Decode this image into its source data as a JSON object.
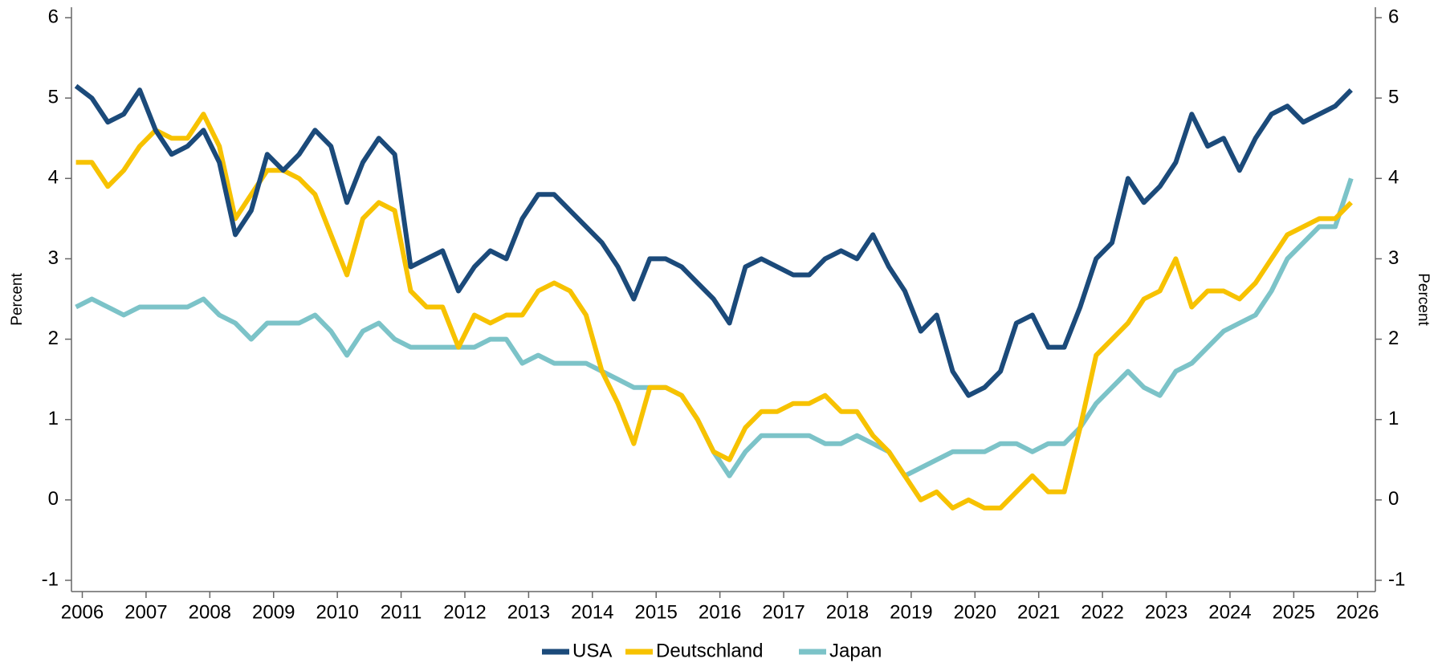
{
  "chart_data": {
    "type": "line",
    "y_label": "Percent",
    "y2_label": "Percent",
    "x": [
      2006.4,
      2006.65,
      2006.9,
      2007.15,
      2007.4,
      2007.65,
      2007.9,
      2008.15,
      2008.4,
      2008.65,
      2008.9,
      2009.15,
      2009.4,
      2009.65,
      2009.9,
      2010.15,
      2010.4,
      2010.65,
      2010.9,
      2011.15,
      2011.4,
      2011.65,
      2011.9,
      2012.15,
      2012.4,
      2012.65,
      2012.9,
      2013.15,
      2013.4,
      2013.65,
      2013.9,
      2014.15,
      2014.4,
      2014.65,
      2014.9,
      2015.15,
      2015.4,
      2015.65,
      2015.9,
      2016.15,
      2016.4,
      2016.65,
      2016.9,
      2017.15,
      2017.4,
      2017.65,
      2017.9,
      2018.15,
      2018.4,
      2018.65,
      2018.9,
      2019.15,
      2019.4,
      2019.65,
      2019.9,
      2020.15,
      2020.4,
      2020.65,
      2020.9,
      2021.15,
      2021.4,
      2021.65,
      2021.9,
      2022.15,
      2022.4,
      2022.65,
      2022.9,
      2023.15,
      2023.4,
      2023.65,
      2023.9,
      2024.15,
      2024.4,
      2024.65,
      2024.9,
      2025.15,
      2025.4,
      2025.65,
      2025.9,
      2026.15,
      2026.4
    ],
    "series": [
      {
        "name": "USA",
        "color": "#1b4a7a",
        "values": [
          5.15,
          5.0,
          4.7,
          4.8,
          5.1,
          4.6,
          4.3,
          4.4,
          4.6,
          4.2,
          3.3,
          3.6,
          4.3,
          4.1,
          4.3,
          4.6,
          4.4,
          3.7,
          4.2,
          4.5,
          4.3,
          2.9,
          3.0,
          3.1,
          2.6,
          2.9,
          3.1,
          3.0,
          3.5,
          3.8,
          3.8,
          3.6,
          3.4,
          3.2,
          2.9,
          2.5,
          3.0,
          3.0,
          2.9,
          2.7,
          2.5,
          2.2,
          2.9,
          3.0,
          2.9,
          2.8,
          2.8,
          3.0,
          3.1,
          3.0,
          3.3,
          2.9,
          2.6,
          2.1,
          2.3,
          1.6,
          1.3,
          1.4,
          1.6,
          2.2,
          2.3,
          1.9,
          1.9,
          2.4,
          3.0,
          3.2,
          4.0,
          3.7,
          3.9,
          4.2,
          4.8,
          4.4,
          4.5,
          4.1,
          4.5,
          4.8,
          4.9,
          4.7,
          4.8,
          4.9,
          5.1
        ]
      },
      {
        "name": "Deutschland",
        "color": "#f7c200",
        "values": [
          4.2,
          4.2,
          3.9,
          4.1,
          4.4,
          4.6,
          4.5,
          4.5,
          4.8,
          4.4,
          3.5,
          3.8,
          4.1,
          4.1,
          4.0,
          3.8,
          3.3,
          2.8,
          3.5,
          3.7,
          3.6,
          2.6,
          2.4,
          2.4,
          1.9,
          2.3,
          2.2,
          2.3,
          2.3,
          2.6,
          2.7,
          2.6,
          2.3,
          1.6,
          1.2,
          0.7,
          1.4,
          1.4,
          1.3,
          1.0,
          0.6,
          0.5,
          0.9,
          1.1,
          1.1,
          1.2,
          1.2,
          1.3,
          1.1,
          1.1,
          0.8,
          0.6,
          0.3,
          0.0,
          0.1,
          -0.1,
          0.0,
          -0.1,
          -0.1,
          0.1,
          0.3,
          0.1,
          0.1,
          0.9,
          1.8,
          2.0,
          2.2,
          2.5,
          2.6,
          3.0,
          2.4,
          2.6,
          2.6,
          2.5,
          2.7,
          3.0,
          3.3,
          3.4,
          3.5,
          3.5,
          3.7
        ]
      },
      {
        "name": "Japan",
        "color": "#7cc3c8",
        "values": [
          2.4,
          2.5,
          2.4,
          2.3,
          2.4,
          2.4,
          2.4,
          2.4,
          2.5,
          2.3,
          2.2,
          2.0,
          2.2,
          2.2,
          2.2,
          2.3,
          2.1,
          1.8,
          2.1,
          2.2,
          2.0,
          1.9,
          1.9,
          1.9,
          1.9,
          1.9,
          2.0,
          2.0,
          1.7,
          1.8,
          1.7,
          1.7,
          1.7,
          1.6,
          1.5,
          1.4,
          1.4,
          1.4,
          1.3,
          1.0,
          0.6,
          0.3,
          0.6,
          0.8,
          0.8,
          0.8,
          0.8,
          0.7,
          0.7,
          0.8,
          0.7,
          0.6,
          0.3,
          0.4,
          0.5,
          0.6,
          0.6,
          0.6,
          0.7,
          0.7,
          0.6,
          0.7,
          0.7,
          0.9,
          1.2,
          1.4,
          1.6,
          1.4,
          1.3,
          1.6,
          1.7,
          1.9,
          2.1,
          2.2,
          2.3,
          2.6,
          3.0,
          3.2,
          3.4,
          3.4,
          4.0
        ]
      }
    ],
    "xlim": [
      2006.33,
      2026.78
    ],
    "xticks": [
      {
        "value": 2006.5,
        "label": "2006"
      },
      {
        "value": 2007.5,
        "label": "2007"
      },
      {
        "value": 2008.5,
        "label": "2008"
      },
      {
        "value": 2009.5,
        "label": "2009"
      },
      {
        "value": 2010.5,
        "label": "2010"
      },
      {
        "value": 2011.5,
        "label": "2011"
      },
      {
        "value": 2012.5,
        "label": "2012"
      },
      {
        "value": 2013.5,
        "label": "2013"
      },
      {
        "value": 2014.5,
        "label": "2014"
      },
      {
        "value": 2015.5,
        "label": "2015"
      },
      {
        "value": 2016.5,
        "label": "2016"
      },
      {
        "value": 2017.5,
        "label": "2017"
      },
      {
        "value": 2018.5,
        "label": "2018"
      },
      {
        "value": 2019.5,
        "label": "2019"
      },
      {
        "value": 2020.5,
        "label": "2020"
      },
      {
        "value": 2021.5,
        "label": "2021"
      },
      {
        "value": 2022.5,
        "label": "2022"
      },
      {
        "value": 2023.5,
        "label": "2023"
      },
      {
        "value": 2024.5,
        "label": "2024"
      },
      {
        "value": 2025.5,
        "label": "2025"
      },
      {
        "value": 2026.5,
        "label": "2026"
      }
    ],
    "ylim": [
      -1.14,
      6.13
    ],
    "yticks": [
      -1,
      0,
      1,
      2,
      3,
      4,
      5,
      6
    ],
    "y2lim": [
      -1.14,
      6.13
    ],
    "y2ticks": [
      -1,
      0,
      1,
      2,
      3,
      4,
      5,
      6
    ],
    "legend": "bottom"
  }
}
